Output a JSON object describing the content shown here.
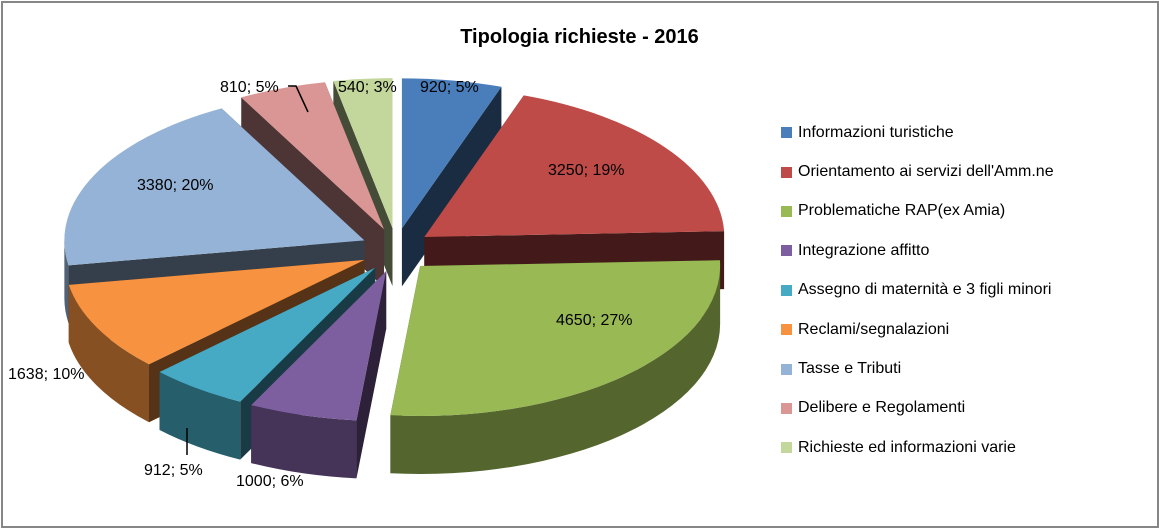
{
  "chart_data": {
    "type": "pie",
    "subtype": "3d-exploded-pie",
    "title": "Tipologia richieste - 2016",
    "legend_position": "right",
    "categories": [
      "Informazioni turistiche",
      "Orientamento ai servizi dell'Amm.ne",
      "Problematiche RAP(ex Amia)",
      "Integrazione affitto",
      "Assegno di maternità e 3 figli minori",
      "Reclami/segnalazioni",
      "Tasse e Tributi",
      "Delibere e Regolamenti",
      "Richieste ed informazioni varie"
    ],
    "values": [
      920,
      3250,
      4650,
      1000,
      912,
      1638,
      3380,
      810,
      540
    ],
    "percentages": [
      5,
      19,
      27,
      6,
      5,
      10,
      20,
      5,
      3
    ],
    "colors": [
      "#4a7ebb",
      "#be4b48",
      "#98b954",
      "#7d5fa0",
      "#46aac5",
      "#f69240",
      "#95b3d7",
      "#d99694",
      "#c3d69b"
    ],
    "data_labels": [
      "920; 5%",
      "3250; 19%",
      "4650; 27%",
      "1000; 6%",
      "912; 5%",
      "1638; 10%",
      "3380; 20%",
      "810; 5%",
      "540; 3%"
    ]
  },
  "legend": {
    "items": [
      {
        "label": "Informazioni turistiche",
        "color": "#4a7ebb"
      },
      {
        "label": "Orientamento ai servizi dell'Amm.ne",
        "color": "#be4b48"
      },
      {
        "label": "Problematiche RAP(ex Amia)",
        "color": "#98b954"
      },
      {
        "label": "Integrazione affitto",
        "color": "#7d5fa0"
      },
      {
        "label": "Assegno di maternità e 3 figli minori",
        "color": "#46aac5"
      },
      {
        "label": "Reclami/segnalazioni",
        "color": "#f69240"
      },
      {
        "label": "Tasse e Tributi",
        "color": "#95b3d7"
      },
      {
        "label": "Delibere e Regolamenti",
        "color": "#d99694"
      },
      {
        "label": "Richieste ed informazioni varie",
        "color": "#c3d69b"
      }
    ]
  }
}
